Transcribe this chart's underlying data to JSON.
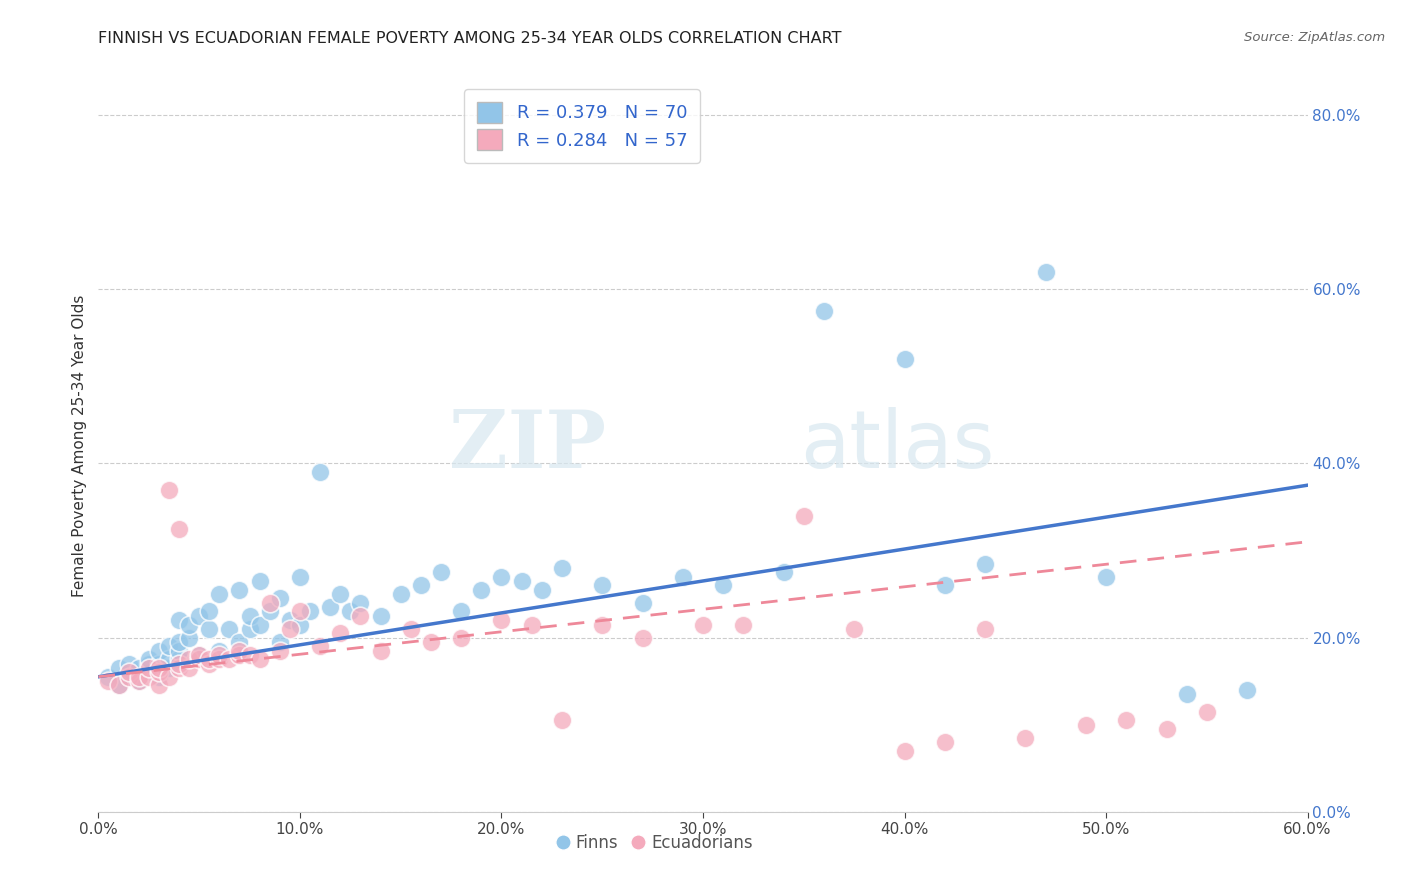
{
  "title": "FINNISH VS ECUADORIAN FEMALE POVERTY AMONG 25-34 YEAR OLDS CORRELATION CHART",
  "source": "Source: ZipAtlas.com",
  "ylabel": "Female Poverty Among 25-34 Year Olds",
  "xlim": [
    0.0,
    0.6
  ],
  "ylim": [
    0.0,
    0.84
  ],
  "xticks": [
    0.0,
    0.1,
    0.2,
    0.3,
    0.4,
    0.5,
    0.6
  ],
  "yticks_right": [
    0.0,
    0.2,
    0.4,
    0.6,
    0.8
  ],
  "finn_color": "#92C5E8",
  "ecu_color": "#F4AABC",
  "finn_line_color": "#4477CC",
  "ecu_line_color": "#EE8899",
  "R_finn": 0.379,
  "N_finn": 70,
  "R_ecu": 0.284,
  "N_ecu": 57,
  "legend_text_color": "#3366CC",
  "watermark_zip": "ZIP",
  "watermark_atlas": "atlas",
  "background_color": "#ffffff",
  "finn_x": [
    0.005,
    0.01,
    0.01,
    0.015,
    0.015,
    0.02,
    0.02,
    0.025,
    0.025,
    0.025,
    0.03,
    0.03,
    0.03,
    0.035,
    0.035,
    0.035,
    0.04,
    0.04,
    0.04,
    0.04,
    0.045,
    0.045,
    0.05,
    0.05,
    0.055,
    0.055,
    0.06,
    0.06,
    0.065,
    0.07,
    0.07,
    0.075,
    0.075,
    0.08,
    0.08,
    0.085,
    0.09,
    0.09,
    0.095,
    0.1,
    0.1,
    0.105,
    0.11,
    0.115,
    0.12,
    0.125,
    0.13,
    0.14,
    0.15,
    0.16,
    0.17,
    0.18,
    0.19,
    0.2,
    0.21,
    0.22,
    0.23,
    0.25,
    0.27,
    0.29,
    0.31,
    0.34,
    0.36,
    0.4,
    0.42,
    0.44,
    0.47,
    0.5,
    0.54,
    0.57
  ],
  "finn_y": [
    0.155,
    0.145,
    0.165,
    0.155,
    0.17,
    0.15,
    0.165,
    0.16,
    0.17,
    0.175,
    0.155,
    0.17,
    0.185,
    0.165,
    0.175,
    0.19,
    0.175,
    0.185,
    0.195,
    0.22,
    0.2,
    0.215,
    0.18,
    0.225,
    0.21,
    0.23,
    0.185,
    0.25,
    0.21,
    0.195,
    0.255,
    0.21,
    0.225,
    0.215,
    0.265,
    0.23,
    0.195,
    0.245,
    0.22,
    0.215,
    0.27,
    0.23,
    0.39,
    0.235,
    0.25,
    0.23,
    0.24,
    0.225,
    0.25,
    0.26,
    0.275,
    0.23,
    0.255,
    0.27,
    0.265,
    0.255,
    0.28,
    0.26,
    0.24,
    0.27,
    0.26,
    0.275,
    0.575,
    0.52,
    0.26,
    0.285,
    0.62,
    0.27,
    0.135,
    0.14
  ],
  "ecu_x": [
    0.005,
    0.01,
    0.015,
    0.015,
    0.02,
    0.02,
    0.025,
    0.025,
    0.03,
    0.03,
    0.03,
    0.035,
    0.035,
    0.04,
    0.04,
    0.04,
    0.045,
    0.045,
    0.05,
    0.05,
    0.055,
    0.055,
    0.06,
    0.06,
    0.065,
    0.07,
    0.07,
    0.075,
    0.08,
    0.085,
    0.09,
    0.095,
    0.1,
    0.11,
    0.12,
    0.13,
    0.14,
    0.155,
    0.165,
    0.18,
    0.2,
    0.215,
    0.23,
    0.25,
    0.27,
    0.3,
    0.32,
    0.35,
    0.375,
    0.4,
    0.42,
    0.44,
    0.46,
    0.49,
    0.51,
    0.53,
    0.55
  ],
  "ecu_y": [
    0.15,
    0.145,
    0.155,
    0.16,
    0.15,
    0.155,
    0.155,
    0.165,
    0.145,
    0.16,
    0.165,
    0.155,
    0.37,
    0.165,
    0.325,
    0.17,
    0.165,
    0.175,
    0.175,
    0.18,
    0.17,
    0.175,
    0.175,
    0.18,
    0.175,
    0.18,
    0.185,
    0.18,
    0.175,
    0.24,
    0.185,
    0.21,
    0.23,
    0.19,
    0.205,
    0.225,
    0.185,
    0.21,
    0.195,
    0.2,
    0.22,
    0.215,
    0.105,
    0.215,
    0.2,
    0.215,
    0.215,
    0.34,
    0.21,
    0.07,
    0.08,
    0.21,
    0.085,
    0.1,
    0.105,
    0.095,
    0.115
  ]
}
